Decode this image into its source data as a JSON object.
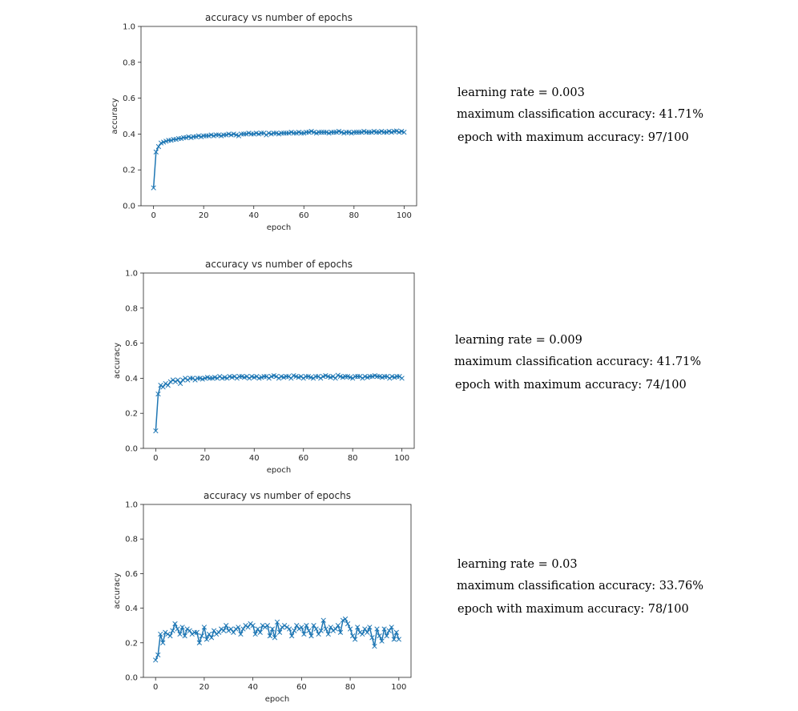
{
  "colors": {
    "line": "#1f77b4",
    "axes": "#262626",
    "background": "#ffffff"
  },
  "panels": [
    {
      "info": {
        "learning_rate": "learning rate = 0.003",
        "max_accuracy": "maximum classification accuracy: 41.71%",
        "best_epoch": "epoch with maximum accuracy: 97/100"
      }
    },
    {
      "info": {
        "learning_rate": "learning rate = 0.009",
        "max_accuracy": "maximum classification accuracy: 41.71%",
        "best_epoch": "epoch with maximum accuracy: 74/100"
      }
    },
    {
      "info": {
        "learning_rate": "learning rate = 0.03",
        "max_accuracy": "maximum classification accuracy: 33.76%",
        "best_epoch": "epoch with maximum accuracy: 78/100"
      }
    }
  ],
  "chart_data": [
    {
      "type": "line",
      "marker": "x",
      "title": "accuracy vs number of epochs",
      "xlabel": "epoch",
      "ylabel": "accuracy",
      "xlim": [
        -5,
        105
      ],
      "ylim": [
        0.0,
        1.0
      ],
      "xticks": [
        "0",
        "20",
        "40",
        "60",
        "80",
        "100"
      ],
      "yticks": [
        "0.0",
        "0.2",
        "0.4",
        "0.6",
        "0.8",
        "1.0"
      ],
      "grid": false,
      "series": [
        {
          "x": [
            0,
            1,
            2,
            3,
            4,
            5,
            6,
            7,
            8,
            9,
            10,
            11,
            12,
            13,
            14,
            15,
            16,
            17,
            18,
            19,
            20,
            21,
            22,
            23,
            24,
            25,
            26,
            27,
            28,
            29,
            30,
            31,
            32,
            33,
            34,
            35,
            36,
            37,
            38,
            39,
            40,
            41,
            42,
            43,
            44,
            45,
            46,
            47,
            48,
            49,
            50,
            51,
            52,
            53,
            54,
            55,
            56,
            57,
            58,
            59,
            60,
            61,
            62,
            63,
            64,
            65,
            66,
            67,
            68,
            69,
            70,
            71,
            72,
            73,
            74,
            75,
            76,
            77,
            78,
            79,
            80,
            81,
            82,
            83,
            84,
            85,
            86,
            87,
            88,
            89,
            90,
            91,
            92,
            93,
            94,
            95,
            96,
            97,
            98,
            99,
            100
          ],
          "y": [
            0.1,
            0.3,
            0.33,
            0.35,
            0.355,
            0.36,
            0.365,
            0.365,
            0.37,
            0.37,
            0.375,
            0.375,
            0.38,
            0.38,
            0.385,
            0.38,
            0.385,
            0.385,
            0.39,
            0.385,
            0.39,
            0.39,
            0.39,
            0.395,
            0.39,
            0.395,
            0.395,
            0.39,
            0.395,
            0.395,
            0.4,
            0.395,
            0.4,
            0.395,
            0.39,
            0.4,
            0.4,
            0.4,
            0.405,
            0.4,
            0.4,
            0.405,
            0.4,
            0.405,
            0.405,
            0.395,
            0.405,
            0.4,
            0.405,
            0.405,
            0.4,
            0.405,
            0.405,
            0.405,
            0.405,
            0.41,
            0.405,
            0.405,
            0.41,
            0.405,
            0.405,
            0.41,
            0.41,
            0.415,
            0.41,
            0.405,
            0.41,
            0.41,
            0.41,
            0.41,
            0.405,
            0.41,
            0.41,
            0.41,
            0.415,
            0.41,
            0.405,
            0.41,
            0.41,
            0.405,
            0.41,
            0.41,
            0.41,
            0.41,
            0.415,
            0.41,
            0.41,
            0.41,
            0.415,
            0.41,
            0.41,
            0.415,
            0.41,
            0.41,
            0.415,
            0.41,
            0.415,
            0.4171,
            0.41,
            0.415,
            0.41
          ]
        }
      ]
    },
    {
      "type": "line",
      "marker": "x",
      "title": "accuracy vs number of epochs",
      "xlabel": "epoch",
      "ylabel": "accuracy",
      "xlim": [
        -5,
        105
      ],
      "ylim": [
        0.0,
        1.0
      ],
      "xticks": [
        "0",
        "20",
        "40",
        "60",
        "80",
        "100"
      ],
      "yticks": [
        "0.0",
        "0.2",
        "0.4",
        "0.6",
        "0.8",
        "1.0"
      ],
      "grid": false,
      "series": [
        {
          "x": [
            0,
            1,
            2,
            3,
            4,
            5,
            6,
            7,
            8,
            9,
            10,
            11,
            12,
            13,
            14,
            15,
            16,
            17,
            18,
            19,
            20,
            21,
            22,
            23,
            24,
            25,
            26,
            27,
            28,
            29,
            30,
            31,
            32,
            33,
            34,
            35,
            36,
            37,
            38,
            39,
            40,
            41,
            42,
            43,
            44,
            45,
            46,
            47,
            48,
            49,
            50,
            51,
            52,
            53,
            54,
            55,
            56,
            57,
            58,
            59,
            60,
            61,
            62,
            63,
            64,
            65,
            66,
            67,
            68,
            69,
            70,
            71,
            72,
            73,
            74,
            75,
            76,
            77,
            78,
            79,
            80,
            81,
            82,
            83,
            84,
            85,
            86,
            87,
            88,
            89,
            90,
            91,
            92,
            93,
            94,
            95,
            96,
            97,
            98,
            99,
            100
          ],
          "y": [
            0.1,
            0.31,
            0.36,
            0.35,
            0.37,
            0.36,
            0.38,
            0.39,
            0.38,
            0.39,
            0.37,
            0.39,
            0.4,
            0.39,
            0.4,
            0.4,
            0.39,
            0.4,
            0.4,
            0.395,
            0.4,
            0.405,
            0.4,
            0.4,
            0.405,
            0.4,
            0.41,
            0.4,
            0.405,
            0.4,
            0.41,
            0.405,
            0.41,
            0.4,
            0.41,
            0.41,
            0.405,
            0.41,
            0.4,
            0.41,
            0.405,
            0.41,
            0.4,
            0.405,
            0.41,
            0.41,
            0.4,
            0.41,
            0.415,
            0.41,
            0.4,
            0.41,
            0.405,
            0.41,
            0.41,
            0.4,
            0.415,
            0.41,
            0.405,
            0.41,
            0.4,
            0.41,
            0.41,
            0.405,
            0.4,
            0.41,
            0.41,
            0.4,
            0.41,
            0.415,
            0.41,
            0.405,
            0.41,
            0.4,
            0.4171,
            0.41,
            0.405,
            0.41,
            0.41,
            0.405,
            0.4,
            0.41,
            0.41,
            0.41,
            0.4,
            0.41,
            0.405,
            0.41,
            0.41,
            0.415,
            0.41,
            0.41,
            0.405,
            0.41,
            0.41,
            0.4,
            0.41,
            0.405,
            0.41,
            0.41,
            0.4
          ]
        }
      ]
    },
    {
      "type": "line",
      "marker": "x",
      "title": "accuracy vs number of epochs",
      "xlabel": "epoch",
      "ylabel": "accuracy",
      "xlim": [
        -5,
        105
      ],
      "ylim": [
        0.0,
        1.0
      ],
      "xticks": [
        "0",
        "20",
        "40",
        "60",
        "80",
        "100"
      ],
      "yticks": [
        "0.0",
        "0.2",
        "0.4",
        "0.6",
        "0.8",
        "1.0"
      ],
      "grid": false,
      "series": [
        {
          "x": [
            0,
            1,
            2,
            3,
            4,
            5,
            6,
            7,
            8,
            9,
            10,
            11,
            12,
            13,
            14,
            15,
            16,
            17,
            18,
            19,
            20,
            21,
            22,
            23,
            24,
            25,
            26,
            27,
            28,
            29,
            30,
            31,
            32,
            33,
            34,
            35,
            36,
            37,
            38,
            39,
            40,
            41,
            42,
            43,
            44,
            45,
            46,
            47,
            48,
            49,
            50,
            51,
            52,
            53,
            54,
            55,
            56,
            57,
            58,
            59,
            60,
            61,
            62,
            63,
            64,
            65,
            66,
            67,
            68,
            69,
            70,
            71,
            72,
            73,
            74,
            75,
            76,
            77,
            78,
            79,
            80,
            81,
            82,
            83,
            84,
            85,
            86,
            87,
            88,
            89,
            90,
            91,
            92,
            93,
            94,
            95,
            96,
            97,
            98,
            99,
            100
          ],
          "y": [
            0.1,
            0.13,
            0.25,
            0.2,
            0.26,
            0.25,
            0.24,
            0.27,
            0.31,
            0.28,
            0.25,
            0.29,
            0.24,
            0.28,
            0.27,
            0.25,
            0.26,
            0.26,
            0.2,
            0.24,
            0.29,
            0.22,
            0.25,
            0.23,
            0.27,
            0.25,
            0.26,
            0.28,
            0.27,
            0.3,
            0.27,
            0.28,
            0.26,
            0.28,
            0.29,
            0.25,
            0.28,
            0.3,
            0.29,
            0.31,
            0.3,
            0.25,
            0.28,
            0.26,
            0.3,
            0.29,
            0.3,
            0.24,
            0.28,
            0.23,
            0.32,
            0.26,
            0.29,
            0.3,
            0.29,
            0.28,
            0.24,
            0.27,
            0.3,
            0.28,
            0.29,
            0.25,
            0.3,
            0.27,
            0.24,
            0.3,
            0.28,
            0.25,
            0.27,
            0.33,
            0.28,
            0.25,
            0.29,
            0.27,
            0.28,
            0.3,
            0.26,
            0.33,
            0.3376,
            0.31,
            0.28,
            0.24,
            0.22,
            0.29,
            0.26,
            0.25,
            0.28,
            0.26,
            0.29,
            0.23,
            0.18,
            0.28,
            0.24,
            0.21,
            0.28,
            0.24,
            0.27,
            0.29,
            0.22,
            0.26,
            0.22
          ]
        }
      ]
    }
  ]
}
